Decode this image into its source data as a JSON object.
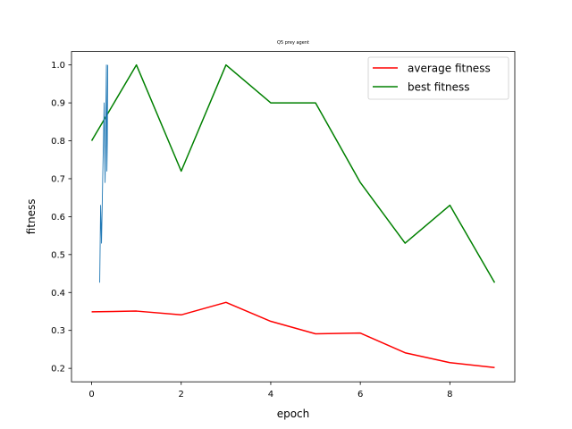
{
  "chart_data": {
    "type": "line",
    "title": "Q5 prey agent",
    "xlabel": "epoch",
    "ylabel": "fitness",
    "xlim": [
      -0.45,
      9.45
    ],
    "ylim": [
      0.1645,
      1.0355
    ],
    "xticks": [
      0,
      2,
      4,
      6,
      8
    ],
    "yticks": [
      0.2,
      0.3,
      0.4,
      0.5,
      0.6,
      0.7,
      0.8,
      0.9,
      1.0
    ],
    "grid": false,
    "legend_position": "top-right",
    "x": [
      0,
      1,
      2,
      3,
      4,
      5,
      6,
      7,
      8,
      9
    ],
    "series": [
      {
        "name": "average fitness",
        "color": "#ff0000",
        "values": [
          0.349,
          0.351,
          0.341,
          0.374,
          0.324,
          0.291,
          0.293,
          0.241,
          0.215,
          0.202
        ]
      },
      {
        "name": "best fitness",
        "color": "#008000",
        "values": [
          0.8,
          1.0,
          0.72,
          1.0,
          0.9,
          0.9,
          0.69,
          0.53,
          0.63,
          0.426
        ]
      },
      {
        "color": "#1f77b4",
        "x": [
          0.18,
          0.2,
          0.22,
          0.25,
          0.28,
          0.3,
          0.32,
          0.33,
          0.34,
          0.35,
          0.36
        ],
        "values": [
          0.426,
          0.63,
          0.53,
          0.72,
          0.9,
          0.69,
          0.9,
          1.0,
          0.72,
          0.8,
          1.0
        ]
      }
    ]
  }
}
